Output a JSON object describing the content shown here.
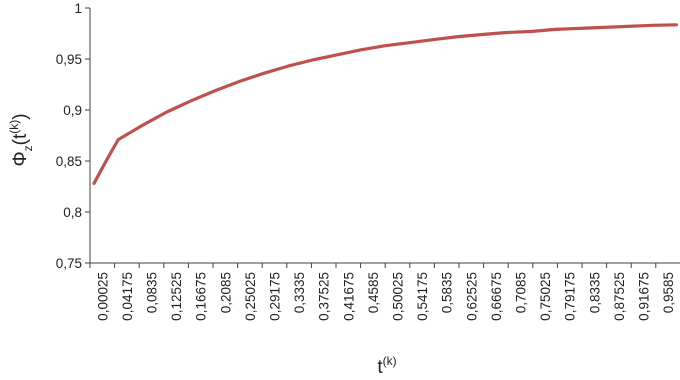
{
  "chart_data": {
    "type": "line",
    "xlabel": {
      "base": "t",
      "sup": "(k)"
    },
    "ylabel": {
      "base": "Φ",
      "sub": "z",
      "mid": "(t",
      "sup": "(k)",
      "end": ")"
    },
    "ylim": [
      0.75,
      1
    ],
    "yticks": [
      "0,75",
      "0,8",
      "0,85",
      "0,9",
      "0,95",
      "1"
    ],
    "x_ticks": [
      "0,00025",
      "0,04175",
      "0,0835",
      "0,12525",
      "0,16675",
      "0,2085",
      "0,25025",
      "0,29175",
      "0,3335",
      "0,37525",
      "0,41675",
      "0,4585",
      "0,50025",
      "0,54175",
      "0,5835",
      "0,62525",
      "0,66675",
      "0,7085",
      "0,75025",
      "0,79175",
      "0,8335",
      "0,87525",
      "0,91675",
      "0,9585"
    ],
    "grid": false,
    "series": [
      {
        "color": "#c0504d",
        "x": [
          0.00025,
          0.021,
          0.04175,
          0.0835,
          0.12525,
          0.16675,
          0.2085,
          0.25025,
          0.29175,
          0.3335,
          0.37525,
          0.41675,
          0.4585,
          0.50025,
          0.54175,
          0.5835,
          0.62525,
          0.66675,
          0.7085,
          0.75025,
          0.79175,
          0.8335,
          0.87525,
          0.91675,
          0.9585,
          1.0
        ],
        "y": [
          0.828,
          0.85,
          0.871,
          0.885,
          0.898,
          0.909,
          0.919,
          0.928,
          0.936,
          0.943,
          0.949,
          0.954,
          0.959,
          0.963,
          0.966,
          0.969,
          0.972,
          0.974,
          0.976,
          0.977,
          0.979,
          0.98,
          0.981,
          0.982,
          0.983,
          0.9835
        ]
      }
    ]
  }
}
